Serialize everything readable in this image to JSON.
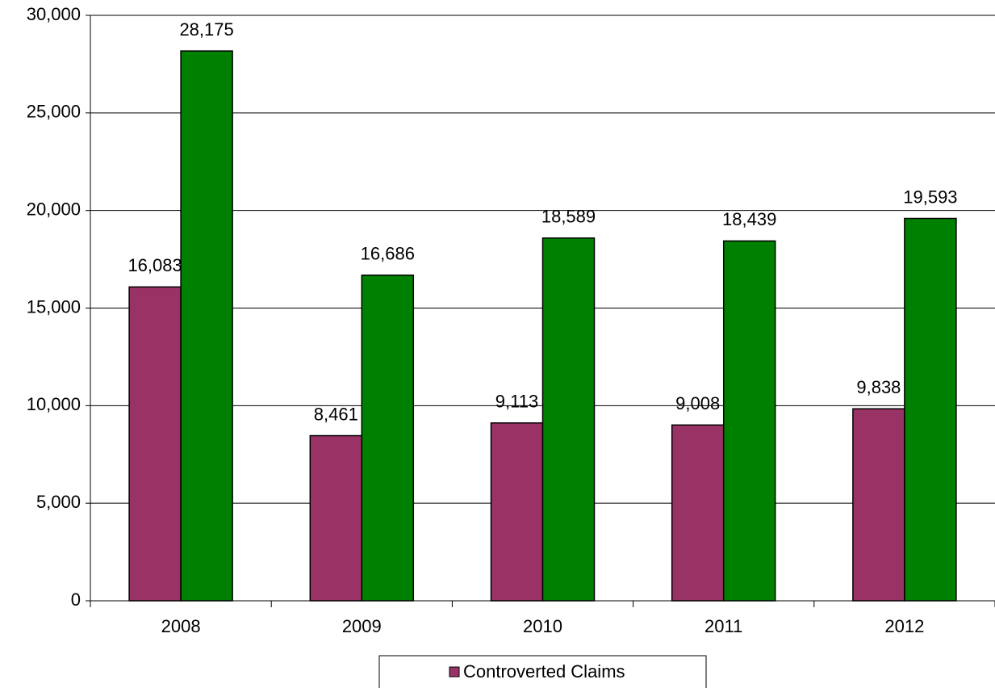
{
  "chart_data": {
    "type": "bar",
    "categories": [
      "2008",
      "2009",
      "2010",
      "2011",
      "2012"
    ],
    "series": [
      {
        "name": "Controverted Claims",
        "color": "#993366",
        "values": [
          16083,
          8461,
          9113,
          9008,
          9838
        ],
        "value_labels": [
          "16,083",
          "8,461",
          "9,113",
          "9,008",
          "9,838"
        ]
      },
      {
        "color": "#008000",
        "values": [
          28175,
          16686,
          18589,
          18439,
          19593
        ],
        "value_labels": [
          "28,175",
          "16,686",
          "18,589",
          "18,439",
          "19,593"
        ]
      }
    ],
    "ylim": [
      0,
      30000
    ],
    "yticks": [
      0,
      {
        "value": 5000,
        "label": "5,000"
      },
      {
        "value": 10000,
        "label": "10,000"
      },
      {
        "value": 15000,
        "label": "15,000"
      },
      {
        "value": 20000,
        "label": "20,000"
      },
      {
        "value": 25000,
        "label": "25,000"
      },
      {
        "value": 30000,
        "label": "30,000"
      }
    ],
    "grid": true
  }
}
